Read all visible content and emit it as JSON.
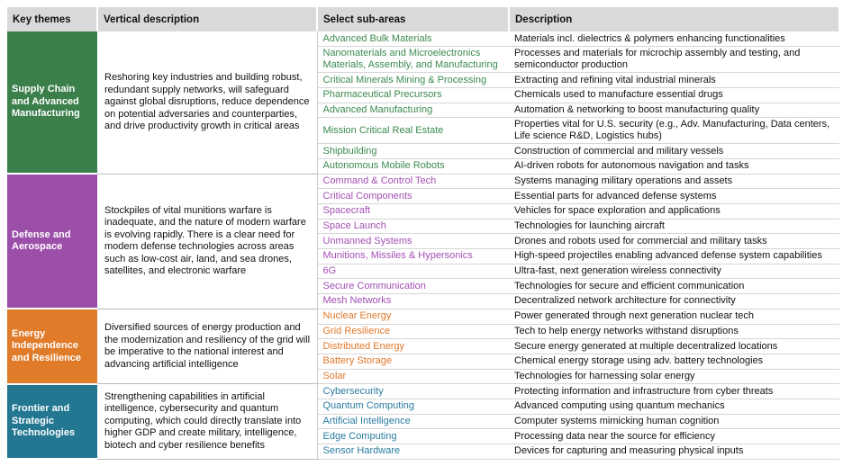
{
  "table": {
    "header": [
      "Key themes",
      "Vertical description",
      "Select sub-areas",
      "Description"
    ],
    "groups": [
      {
        "theme": "Supply Chain and Advanced Manufacturing",
        "description": "Reshoring key industries and building robust, redundant supply networks, will safeguard against global disruptions, reduce dependence on potential adversaries and counterparties, and drive productivity growth in critical areas",
        "rows": [
          [
            "Advanced Bulk Materials",
            "Materials incl. dielectrics & polymers enhancing functionalities"
          ],
          [
            "Nanomaterials and Microelectronics Materials, Assembly, and Manufacturing",
            "Processes and materials for microchip assembly and testing, and semiconductor production"
          ],
          [
            "Critical Minerals Mining & Processing",
            "Extracting and refining vital industrial minerals"
          ],
          [
            "Pharmaceutical Precursors",
            "Chemicals used to manufacture essential drugs"
          ],
          [
            "Advanced Manufacturing",
            "Automation & networking to boost manufacturing quality"
          ],
          [
            "Mission Critical Real Estate",
            "Properties vital for U.S. security (e.g., Adv. Manufacturing, Data centers, Life science R&D, Logistics hubs)"
          ],
          [
            "Shipbuilding",
            "Construction of commercial and military vessels"
          ],
          [
            "Autonomous Mobile Robots",
            "AI-driven robots for autonomous navigation and tasks"
          ]
        ]
      },
      {
        "theme": "Defense and Aerospace",
        "description": "Stockpiles of vital munitions warfare is inadequate, and the nature of modern warfare is evolving rapidly. There is a clear need for modern defense technologies across areas such as low-cost air, land, and sea drones, satellites, and electronic warfare",
        "rows": [
          [
            "Command & Control Tech",
            "Systems managing military operations and assets"
          ],
          [
            "Critical Components",
            "Essential parts for advanced defense systems"
          ],
          [
            "Spacecraft",
            "Vehicles for space exploration and applications"
          ],
          [
            "Space Launch",
            "Technologies for launching aircraft"
          ],
          [
            "Unmanned Systems",
            "Drones and robots used for commercial and military tasks"
          ],
          [
            "Munitions, Missiles & Hypersonics",
            "High-speed projectiles enabling advanced defense system capabilities"
          ],
          [
            "6G",
            "Ultra-fast, next generation wireless connectivity"
          ],
          [
            "Secure Communication",
            "Technologies for secure and efficient communication"
          ],
          [
            "Mesh Networks",
            "Decentralized network architecture for connectivity"
          ]
        ]
      },
      {
        "theme": "Energy Independence and Resilience",
        "description": "Diversified sources of energy production and the modernization and resiliency of the grid will be imperative to the national interest and advancing artificial intelligence",
        "rows": [
          [
            "Nuclear Energy",
            "Power generated through next generation nuclear tech"
          ],
          [
            "Grid Resilience",
            "Tech to help energy networks withstand disruptions"
          ],
          [
            "Distributed Energy",
            "Secure energy generated at multiple decentralized locations"
          ],
          [
            "Battery Storage",
            "Chemical energy storage using adv. battery technologies"
          ],
          [
            "Solar",
            "Technologies for harnessing solar energy"
          ]
        ]
      },
      {
        "theme": "Frontier and Strategic Technologies",
        "description": "Strengthening capabilities in artificial intelligence, cybersecurity and quantum computing, which could directly translate into higher GDP and create military, intelligence, biotech and cyber resilience benefits",
        "rows": [
          [
            "Cybersecurity",
            "Protecting information and infrastructure from cyber threats"
          ],
          [
            "Quantum Computing",
            "Advanced computing using quantum mechanics"
          ],
          [
            "Artificial Intelligence",
            "Computer systems mimicking human cognition"
          ],
          [
            "Edge Computing",
            "Processing data near the source for efficiency"
          ],
          [
            "Sensor Hardware",
            "Devices for capturing and measuring physical inputs"
          ]
        ]
      }
    ]
  }
}
